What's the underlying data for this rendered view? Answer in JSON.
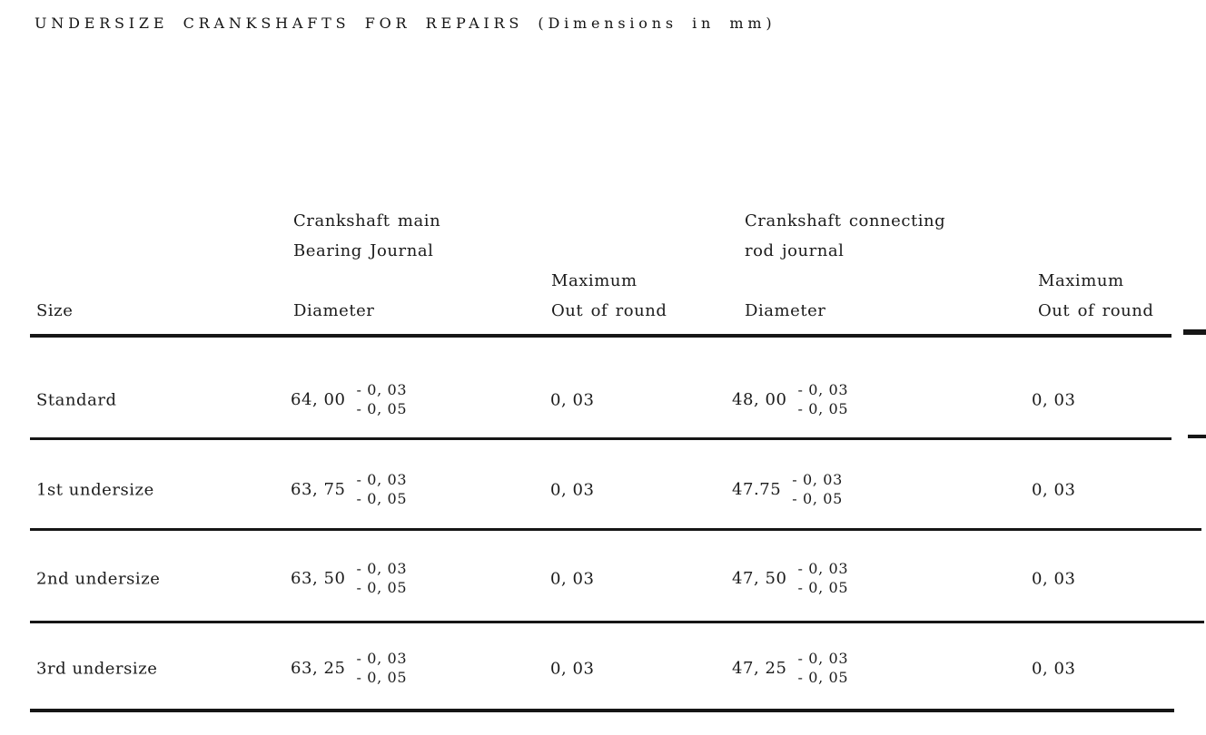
{
  "colors": {
    "paper": "#ffffff",
    "ink": "#1b1b1b"
  },
  "title": "UNDERSIZE CRANKSHAFTS FOR REPAIRS (Dimensions in mm)",
  "table": {
    "group_headers": {
      "main_bearing_line1": "Crankshaft main",
      "main_bearing_line2": "Bearing Journal",
      "rod_line1": "Crankshaft connecting",
      "rod_line2": "rod journal"
    },
    "column_headers": {
      "size": "Size",
      "diameter": "Diameter",
      "maximum": "Maximum",
      "out_of_round": "Out of round"
    },
    "rows": [
      {
        "size": "Standard",
        "main_diameter": "64, 00",
        "main_tol_upper": "- 0, 03",
        "main_tol_lower": "- 0, 05",
        "main_out_of_round": "0, 03",
        "rod_diameter": "48, 00",
        "rod_tol_upper": "- 0, 03",
        "rod_tol_lower": "- 0, 05",
        "rod_out_of_round": "0, 03"
      },
      {
        "size": "1st undersize",
        "main_diameter": "63, 75",
        "main_tol_upper": "- 0, 03",
        "main_tol_lower": "- 0, 05",
        "main_out_of_round": "0, 03",
        "rod_diameter": "47.75",
        "rod_tol_upper": "- 0, 03",
        "rod_tol_lower": "- 0, 05",
        "rod_out_of_round": "0, 03"
      },
      {
        "size": "2nd undersize",
        "main_diameter": "63, 50",
        "main_tol_upper": "- 0, 03",
        "main_tol_lower": "- 0, 05",
        "main_out_of_round": "0, 03",
        "rod_diameter": "47, 50",
        "rod_tol_upper": "- 0, 03",
        "rod_tol_lower": "- 0, 05",
        "rod_out_of_round": "0, 03"
      },
      {
        "size": "3rd undersize",
        "main_diameter": "63, 25",
        "main_tol_upper": "- 0, 03",
        "main_tol_lower": "- 0, 05",
        "main_out_of_round": "0, 03",
        "rod_diameter": "47, 25",
        "rod_tol_upper": "- 0, 03",
        "rod_tol_lower": "- 0, 05",
        "rod_out_of_round": "0, 03"
      }
    ]
  }
}
